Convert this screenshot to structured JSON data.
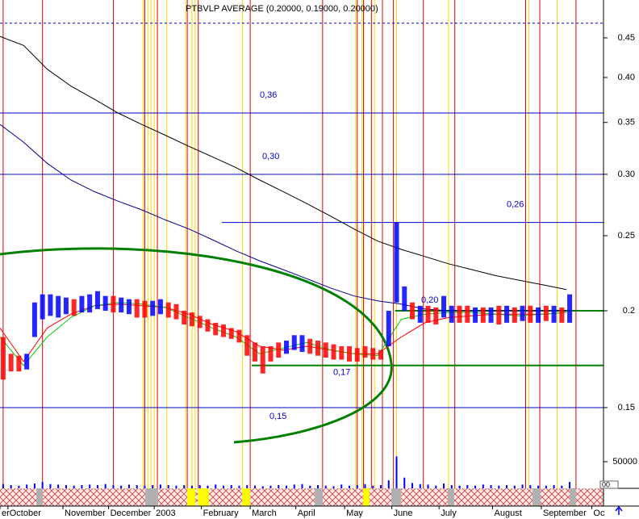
{
  "chart_data": {
    "type": "stock",
    "title": "PTBVLP AVERAGE (0.20000, 0.19000, 0.20000)",
    "log_scale": true,
    "xlim": [
      0,
      384
    ],
    "xticks": [
      {
        "value": 0,
        "label": "er"
      },
      {
        "value": 5,
        "label": "October"
      },
      {
        "value": 40,
        "label": "November"
      },
      {
        "value": 69,
        "label": "December"
      },
      {
        "value": 98,
        "label": "2003"
      },
      {
        "value": 128,
        "label": "February"
      },
      {
        "value": 159,
        "label": "March"
      },
      {
        "value": 188,
        "label": "April"
      },
      {
        "value": 219,
        "label": "May"
      },
      {
        "value": 249,
        "label": "June"
      },
      {
        "value": 279,
        "label": "July"
      },
      {
        "value": 313,
        "label": "August"
      },
      {
        "value": 344,
        "label": "September"
      },
      {
        "value": 376,
        "label": "Oc"
      }
    ],
    "ylim": [
      0.12,
      0.5
    ],
    "yticks": [
      0.15,
      0.2,
      {
        "value": 0.25,
        "label": "0.25"
      },
      {
        "value": 0.3,
        "label": "0.30"
      },
      0.35,
      {
        "value": 0.4,
        "label": "0.40"
      },
      0.45
    ],
    "volume_lim": [
      0,
      100000
    ],
    "volume_ticks": [
      50000
    ],
    "corner_label": "00",
    "up_color": "#0000ff",
    "down_color": "#ff0000",
    "bars": {
      "x": [
        2,
        7,
        12,
        17,
        22,
        27,
        32,
        37,
        42,
        47,
        52,
        57,
        62,
        67,
        72,
        77,
        82,
        87,
        92,
        97,
        102,
        107,
        112,
        117,
        122,
        127,
        132,
        137,
        142,
        147,
        152,
        157,
        162,
        167,
        172,
        177,
        182,
        187,
        192,
        197,
        202,
        207,
        212,
        217,
        222,
        227,
        232,
        237,
        242,
        247,
        252,
        257,
        262,
        267,
        272,
        277,
        282,
        287,
        292,
        297,
        302,
        307,
        312,
        317,
        322,
        327,
        332,
        337,
        342,
        347,
        352,
        357,
        362
      ],
      "low": [
        0.163,
        0.167,
        0.167,
        0.168,
        0.185,
        0.195,
        0.197,
        0.196,
        0.198,
        0.197,
        0.199,
        0.199,
        0.201,
        0.2,
        0.199,
        0.199,
        0.198,
        0.196,
        0.196,
        0.197,
        0.198,
        0.196,
        0.195,
        0.192,
        0.191,
        0.19,
        0.188,
        0.186,
        0.185,
        0.184,
        0.182,
        0.175,
        0.172,
        0.166,
        0.172,
        0.174,
        0.176,
        0.178,
        0.177,
        0.176,
        0.175,
        0.174,
        0.173,
        0.173,
        0.172,
        0.172,
        0.174,
        0.173,
        0.173,
        0.18,
        0.205,
        0.2,
        0.195,
        0.193,
        0.193,
        0.192,
        0.196,
        0.193,
        0.193,
        0.193,
        0.193,
        0.193,
        0.193,
        0.192,
        0.193,
        0.193,
        0.194,
        0.193,
        0.193,
        0.194,
        0.193,
        0.193,
        0.193
      ],
      "high": [
        0.185,
        0.176,
        0.175,
        0.176,
        0.205,
        0.21,
        0.21,
        0.209,
        0.208,
        0.207,
        0.209,
        0.21,
        0.212,
        0.209,
        0.209,
        0.208,
        0.207,
        0.207,
        0.206,
        0.206,
        0.207,
        0.205,
        0.204,
        0.2,
        0.199,
        0.197,
        0.195,
        0.193,
        0.192,
        0.19,
        0.189,
        0.186,
        0.182,
        0.18,
        0.18,
        0.182,
        0.183,
        0.186,
        0.186,
        0.184,
        0.183,
        0.182,
        0.181,
        0.18,
        0.18,
        0.179,
        0.18,
        0.179,
        0.178,
        0.2,
        0.26,
        0.215,
        0.205,
        0.203,
        0.203,
        0.202,
        0.209,
        0.203,
        0.203,
        0.203,
        0.202,
        0.202,
        0.202,
        0.203,
        0.203,
        0.202,
        0.203,
        0.203,
        0.202,
        0.203,
        0.203,
        0.202,
        0.21
      ],
      "up": [
        false,
        false,
        false,
        true,
        true,
        true,
        true,
        true,
        true,
        false,
        true,
        true,
        true,
        true,
        false,
        true,
        true,
        false,
        false,
        true,
        true,
        false,
        false,
        false,
        false,
        false,
        false,
        false,
        false,
        false,
        false,
        false,
        false,
        false,
        false,
        false,
        true,
        true,
        true,
        false,
        false,
        false,
        false,
        false,
        false,
        false,
        false,
        false,
        false,
        true,
        true,
        true,
        false,
        true,
        false,
        false,
        true,
        true,
        false,
        false,
        true,
        false,
        true,
        false,
        true,
        false,
        true,
        false,
        true,
        false,
        true,
        false,
        true
      ],
      "volume": [
        8000,
        6000,
        5000,
        7000,
        9000,
        12000,
        8000,
        7000,
        6000,
        5000,
        6000,
        7000,
        6000,
        8000,
        6000,
        5000,
        7000,
        6000,
        5000,
        6000,
        7000,
        6000,
        5000,
        6000,
        5000,
        6000,
        5000,
        7000,
        5000,
        6000,
        5000,
        6000,
        5000,
        4000,
        5000,
        6000,
        5000,
        7000,
        8000,
        5000,
        6000,
        5000,
        4000,
        7000,
        5000,
        6000,
        8000,
        5000,
        6000,
        15000,
        60000,
        20000,
        10000,
        8000,
        7000,
        5000,
        9000,
        6000,
        5000,
        6000,
        5000,
        7000,
        6000,
        5000,
        6000,
        5000,
        7000,
        6000,
        5000,
        5000,
        6000,
        5000,
        12000
      ]
    },
    "ma_x": [
      0,
      15,
      30,
      45,
      60,
      75,
      90,
      105,
      120,
      135,
      150,
      165,
      180,
      195,
      210,
      225,
      240,
      255,
      270,
      285,
      300,
      315,
      330,
      345,
      360
    ],
    "lines": [
      {
        "color": "#000000",
        "values": [
          0.452,
          0.44,
          0.41,
          0.39,
          0.375,
          0.36,
          0.348,
          0.337,
          0.326,
          0.316,
          0.306,
          0.295,
          0.285,
          0.275,
          0.265,
          0.255,
          0.246,
          0.24,
          0.235,
          0.23,
          0.226,
          0.222,
          0.219,
          0.216,
          0.213
        ]
      },
      {
        "color": "#00008b",
        "values": [
          0.348,
          0.33,
          0.31,
          0.295,
          0.285,
          0.277,
          0.27,
          0.262,
          0.255,
          0.247,
          0.239,
          0.232,
          0.226,
          0.22,
          0.214,
          0.209,
          0.206,
          0.204,
          0.201,
          0.2,
          0.2,
          0.2,
          0.2,
          0.2,
          0.2
        ]
      },
      {
        "color": "#ff0000",
        "values": [
          0.19,
          0.172,
          0.19,
          0.198,
          0.203,
          0.204,
          0.203,
          0.202,
          0.198,
          0.192,
          0.188,
          0.18,
          0.178,
          0.18,
          0.178,
          0.176,
          0.176,
          0.185,
          0.193,
          0.196,
          0.197,
          0.198,
          0.198,
          0.198,
          0.199
        ]
      },
      {
        "color": "#00cc00",
        "values": [
          0.185,
          0.17,
          0.185,
          0.196,
          0.203,
          0.205,
          0.204,
          0.202,
          0.196,
          0.19,
          0.185,
          0.176,
          0.179,
          0.182,
          0.178,
          0.176,
          0.175,
          0.195,
          0.198,
          0.199,
          0.199,
          0.198,
          0.197,
          0.198,
          0.199
        ]
      }
    ],
    "levels": [
      {
        "value": 0.36,
        "label": "0,36",
        "from": 0,
        "color": "#0000cc"
      },
      {
        "value": 0.3,
        "label": "0,30",
        "from": 0,
        "color": "#0000cc"
      },
      {
        "value": 0.26,
        "label": "0,26",
        "from": 141,
        "color": "#0000cc"
      },
      {
        "value": 0.2,
        "label": "0,20",
        "from": 251,
        "color": "#008000"
      },
      {
        "value": 0.17,
        "label": "0,17",
        "from": 160,
        "color": "#008000"
      },
      {
        "value": 0.15,
        "label": "0,15",
        "from": 0,
        "color": "#0000cc"
      }
    ],
    "resistance": 0.47,
    "red_events": [
      2,
      27,
      72,
      92,
      100,
      119,
      126,
      159,
      205,
      227,
      231,
      236,
      243,
      250,
      269,
      289,
      334,
      343,
      366
    ],
    "yellow_events": [
      91,
      94,
      96,
      98,
      106,
      118,
      122,
      124,
      154,
      226,
      230,
      238,
      252,
      285,
      336,
      354
    ]
  }
}
